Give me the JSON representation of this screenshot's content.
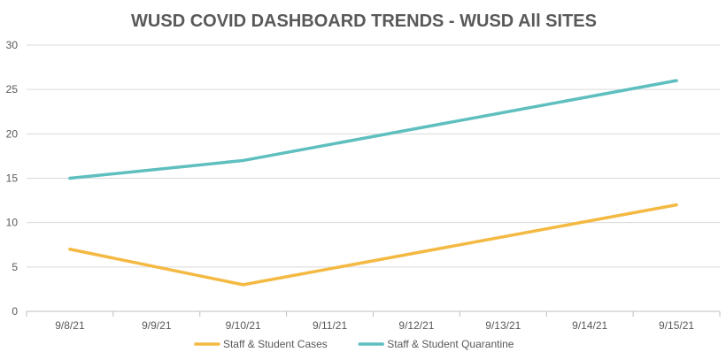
{
  "chart_data": {
    "type": "line",
    "title": "WUSD COVID DASHBOARD TRENDS - WUSD All SITES",
    "categories": [
      "9/8/21",
      "9/9/21",
      "9/10/21",
      "9/11/21",
      "9/12/21",
      "9/13/21",
      "9/14/21",
      "9/15/21"
    ],
    "y_ticks": [
      "0",
      "5",
      "10",
      "15",
      "20",
      "25",
      "30"
    ],
    "ylim": [
      0,
      30
    ],
    "grid": true,
    "legend_position": "bottom",
    "series": [
      {
        "name": "Staff & Student Cases",
        "color": "#f4b942",
        "points": [
          [
            0,
            7
          ],
          [
            2,
            3
          ],
          [
            7,
            12
          ]
        ]
      },
      {
        "name": "Staff & Student Quarantine",
        "color": "#5fbfbf",
        "points": [
          [
            0,
            15
          ],
          [
            2,
            17
          ],
          [
            7,
            26
          ]
        ]
      }
    ]
  }
}
